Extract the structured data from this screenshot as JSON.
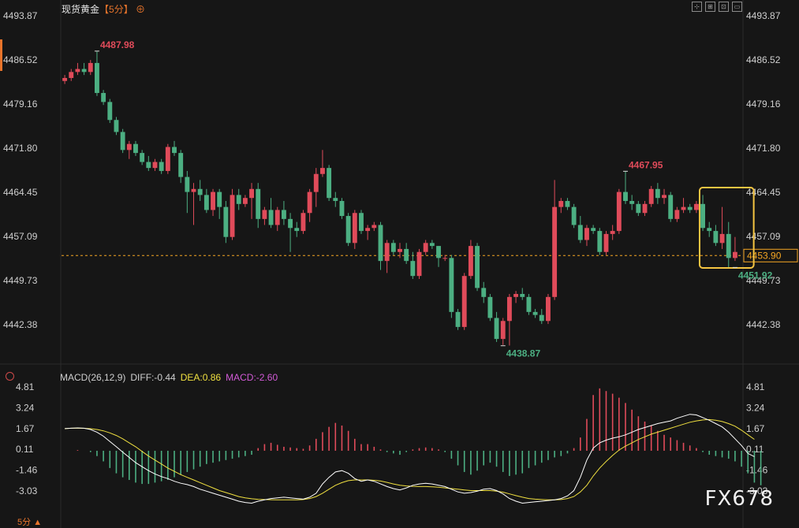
{
  "header": {
    "instrument": "现货黄金",
    "timeframe": "【5分】",
    "add_symbol": "⊕"
  },
  "colors": {
    "up": "#e04b5a",
    "down": "#4caf82",
    "diff": "#ffffff",
    "dea": "#f0e040",
    "macd_label": "#d35bd8",
    "price_line": "#f5a623",
    "highlight": "#f5c542"
  },
  "chart_data": [
    {
      "type": "candlestick",
      "price_ticks": [
        "4493.87",
        "4486.52",
        "4479.16",
        "4471.80",
        "4464.45",
        "4457.09",
        "4449.73",
        "4442.38"
      ],
      "ylim": [
        4439,
        4494
      ],
      "current_price": 4453.9,
      "current_price_label": "4453.90",
      "annotations": [
        {
          "label": "4487.98",
          "value": 4487.98,
          "kind": "high",
          "index": 5
        },
        {
          "label": "4467.95",
          "value": 4467.95,
          "kind": "high",
          "index": 87
        },
        {
          "label": "4438.87",
          "value": 4438.87,
          "kind": "low",
          "index": 68
        },
        {
          "label": "4451.92",
          "value": 4451.92,
          "kind": "low",
          "index": 104
        }
      ],
      "ohlc": [
        [
          4483,
          4484,
          4482.5,
          4483.5
        ],
        [
          4483.5,
          4485,
          4483,
          4484.5
        ],
        [
          4484.5,
          4486,
          4484,
          4485
        ],
        [
          4485,
          4486,
          4484,
          4484.5
        ],
        [
          4484.5,
          4486.5,
          4484,
          4486
        ],
        [
          4486,
          4488,
          4480.5,
          4481
        ],
        [
          4481,
          4481.5,
          4479,
          4479.5
        ],
        [
          4479.5,
          4480,
          4476,
          4476.5
        ],
        [
          4476.5,
          4477,
          4474,
          4474.5
        ],
        [
          4474.5,
          4475,
          4471,
          4471.5
        ],
        [
          4471.5,
          4473,
          4470,
          4472.5
        ],
        [
          4472.5,
          4473,
          4470.5,
          4471
        ],
        [
          4471,
          4471.5,
          4469,
          4469.5
        ],
        [
          4469.5,
          4470.5,
          4468,
          4468.5
        ],
        [
          4468.5,
          4470,
          4468,
          4469.5
        ],
        [
          4469.5,
          4470,
          4467.5,
          4468
        ],
        [
          4468,
          4472.5,
          4467.5,
          4472
        ],
        [
          4472,
          4473,
          4470.5,
          4471
        ],
        [
          4471,
          4471.5,
          4466,
          4467
        ],
        [
          4467,
          4468,
          4461,
          4464.5
        ],
        [
          4464.5,
          4466,
          4459,
          4465
        ],
        [
          4465,
          4466.5,
          4463,
          4464
        ],
        [
          4464,
          4465,
          4461,
          4461.5
        ],
        [
          4461.5,
          4465,
          4460.5,
          4464.5
        ],
        [
          4464.5,
          4465,
          4460,
          4462
        ],
        [
          4462,
          4463,
          4456,
          4457
        ],
        [
          4457,
          4465,
          4456.5,
          4464
        ],
        [
          4464,
          4465,
          4461.5,
          4462.5
        ],
        [
          4462.5,
          4464,
          4462,
          4463.5
        ],
        [
          4463.5,
          4466,
          4460,
          4465
        ],
        [
          4465,
          4466,
          4458.5,
          4460
        ],
        [
          4460,
          4462,
          4459,
          4461.5
        ],
        [
          4461.5,
          4463.5,
          4458.5,
          4459
        ],
        [
          4459,
          4462,
          4458,
          4461.5
        ],
        [
          4461.5,
          4463,
          4459,
          4460
        ],
        [
          4460,
          4461,
          4454.5,
          4458.5
        ],
        [
          4458.5,
          4459.5,
          4457,
          4458
        ],
        [
          4458,
          4461.5,
          4457.5,
          4461
        ],
        [
          4461,
          4465,
          4459.5,
          4464.5
        ],
        [
          4464.5,
          4468.5,
          4462,
          4467.5
        ],
        [
          4467.5,
          4471.5,
          4467,
          4468.5
        ],
        [
          4468.5,
          4469,
          4463,
          4463.5
        ],
        [
          4463.5,
          4464.5,
          4462,
          4463
        ],
        [
          4463,
          4463.5,
          4460,
          4460.5
        ],
        [
          4460.5,
          4461,
          4455.5,
          4456
        ],
        [
          4456,
          4461.5,
          4455,
          4461
        ],
        [
          4461,
          4461.5,
          4457.5,
          4458
        ],
        [
          4458,
          4459,
          4456.5,
          4458.5
        ],
        [
          4458.5,
          4459.5,
          4458,
          4459
        ],
        [
          4459,
          4459.5,
          4451.5,
          4453
        ],
        [
          4453,
          4456.5,
          4451,
          4456
        ],
        [
          4456,
          4456.5,
          4454,
          4454.5
        ],
        [
          4454.5,
          4456,
          4453.5,
          4455
        ],
        [
          4455,
          4456,
          4452.5,
          4453
        ],
        [
          4453,
          4454.5,
          4450,
          4450.5
        ],
        [
          4450.5,
          4455,
          4450,
          4454.5
        ],
        [
          4454.5,
          4456.5,
          4454,
          4456
        ],
        [
          4456,
          4456.5,
          4455,
          4455.5
        ],
        [
          4455.5,
          4455.5,
          4452,
          4453.5
        ],
        [
          4453.5,
          4454,
          4453,
          4453.5
        ],
        [
          4453.5,
          4454,
          4443.5,
          4444.5
        ],
        [
          4444.5,
          4445,
          4441.5,
          4442
        ],
        [
          4442,
          4451,
          4441.5,
          4450.5
        ],
        [
          4450.5,
          4456.5,
          4450,
          4455.5
        ],
        [
          4455.5,
          4456,
          4448,
          4448.5
        ],
        [
          4448.5,
          4449.5,
          4446,
          4447
        ],
        [
          4447,
          4447.5,
          4443,
          4443.5
        ],
        [
          4443.5,
          4444.5,
          4439.5,
          4440
        ],
        [
          4440,
          4443.5,
          4439,
          4443
        ],
        [
          4443,
          4447.5,
          4438.9,
          4447
        ],
        [
          4447,
          4448,
          4446,
          4447.5
        ],
        [
          4447.5,
          4448.5,
          4446.5,
          4447
        ],
        [
          4447,
          4447.5,
          4444,
          4444.5
        ],
        [
          4444.5,
          4445,
          4443.5,
          4444
        ],
        [
          4444,
          4445,
          4442.5,
          4443
        ],
        [
          4443,
          4447.5,
          4442.5,
          4447
        ],
        [
          4447,
          4466.5,
          4446.5,
          4462
        ],
        [
          4462,
          4463.5,
          4461,
          4463
        ],
        [
          4463,
          4463.5,
          4461.5,
          4462
        ],
        [
          4462,
          4462.5,
          4458.5,
          4459
        ],
        [
          4459,
          4460.5,
          4456,
          4456.5
        ],
        [
          4456.5,
          4459,
          4455.5,
          4458.5
        ],
        [
          4458.5,
          4459,
          4457.5,
          4458
        ],
        [
          4458,
          4458.5,
          4454,
          4454.5
        ],
        [
          4454.5,
          4458,
          4454,
          4457.5
        ],
        [
          4457.5,
          4459,
          4456.5,
          4458
        ],
        [
          4458,
          4465,
          4457.5,
          4464.5
        ],
        [
          4464.5,
          4467.95,
          4462.5,
          4463
        ],
        [
          4463,
          4464,
          4461.5,
          4462.5
        ],
        [
          4462.5,
          4463,
          4460.5,
          4461
        ],
        [
          4461,
          4463,
          4460.5,
          4462.5
        ],
        [
          4462.5,
          4465.5,
          4462,
          4465
        ],
        [
          4465,
          4466,
          4462.5,
          4463.5
        ],
        [
          4463.5,
          4465,
          4462.5,
          4464
        ],
        [
          4464,
          4464.5,
          4459.5,
          4460
        ],
        [
          4460,
          4462,
          4459.5,
          4461.5
        ],
        [
          4461.5,
          4463.5,
          4461,
          4462
        ],
        [
          4462,
          4462.5,
          4461,
          4461.5
        ],
        [
          4461.5,
          4463,
          4461,
          4462.5
        ],
        [
          4462.5,
          4464,
          4458,
          4458.5
        ],
        [
          4458.5,
          4459.5,
          4457,
          4458
        ],
        [
          4458,
          4459,
          4455.5,
          4456
        ],
        [
          4456,
          4462,
          4455,
          4457.5
        ],
        [
          4457.5,
          4459.5,
          4451.92,
          4453.5
        ],
        [
          4453.5,
          4457,
          4453,
          4454.5
        ]
      ],
      "highlight_box": {
        "from_index": 99,
        "to_index": 106
      }
    },
    {
      "type": "macd",
      "label": "MACD(26,12,9)",
      "diff_label": "DIFF:-0.44",
      "dea_label": "DEA:0.86",
      "macd_label": "MACD:-2.60",
      "ticks": [
        "4.81",
        "3.24",
        "1.67",
        "0.11",
        "-1.46",
        "-3.03"
      ],
      "ylim": [
        -4.3,
        5.1
      ],
      "diff": [
        1.67,
        1.7,
        1.72,
        1.7,
        1.6,
        1.4,
        1.1,
        0.7,
        0.3,
        -0.1,
        -0.5,
        -0.9,
        -1.2,
        -1.5,
        -1.75,
        -1.95,
        -2.1,
        -2.3,
        -2.45,
        -2.55,
        -2.7,
        -2.9,
        -3.05,
        -3.2,
        -3.35,
        -3.5,
        -3.65,
        -3.8,
        -3.9,
        -3.95,
        -3.8,
        -3.7,
        -3.6,
        -3.55,
        -3.5,
        -3.55,
        -3.6,
        -3.65,
        -3.5,
        -3.2,
        -2.5,
        -2.0,
        -1.6,
        -1.5,
        -1.7,
        -2.1,
        -2.3,
        -2.2,
        -2.3,
        -2.5,
        -2.7,
        -2.85,
        -2.95,
        -2.8,
        -2.6,
        -2.5,
        -2.45,
        -2.5,
        -2.6,
        -2.7,
        -2.9,
        -3.1,
        -3.2,
        -3.15,
        -3.05,
        -2.9,
        -2.85,
        -3.0,
        -3.25,
        -3.6,
        -3.8,
        -3.95,
        -3.9,
        -3.85,
        -3.8,
        -3.75,
        -3.7,
        -3.6,
        -3.4,
        -3.0,
        -2.0,
        -0.7,
        0.2,
        0.6,
        0.8,
        0.95,
        1.05,
        1.2,
        1.4,
        1.6,
        1.75,
        1.9,
        2.05,
        2.15,
        2.25,
        2.45,
        2.6,
        2.75,
        2.7,
        2.5,
        2.3,
        2.05,
        1.8,
        1.4,
        0.9,
        0.4,
        -0.2,
        -0.44
      ],
      "dea": [
        1.67,
        1.7,
        1.7,
        1.69,
        1.66,
        1.6,
        1.5,
        1.35,
        1.15,
        0.9,
        0.6,
        0.3,
        -0.05,
        -0.4,
        -0.7,
        -1.0,
        -1.3,
        -1.55,
        -1.8,
        -2.0,
        -2.2,
        -2.4,
        -2.6,
        -2.8,
        -3.0,
        -3.15,
        -3.3,
        -3.45,
        -3.55,
        -3.62,
        -3.66,
        -3.68,
        -3.69,
        -3.7,
        -3.7,
        -3.7,
        -3.7,
        -3.68,
        -3.6,
        -3.45,
        -3.2,
        -2.9,
        -2.6,
        -2.4,
        -2.25,
        -2.2,
        -2.2,
        -2.2,
        -2.22,
        -2.28,
        -2.38,
        -2.5,
        -2.6,
        -2.65,
        -2.68,
        -2.7,
        -2.7,
        -2.72,
        -2.75,
        -2.8,
        -2.85,
        -2.9,
        -2.95,
        -3.0,
        -3.0,
        -3.0,
        -3.0,
        -3.05,
        -3.12,
        -3.25,
        -3.38,
        -3.5,
        -3.6,
        -3.65,
        -3.68,
        -3.7,
        -3.7,
        -3.68,
        -3.6,
        -3.45,
        -3.1,
        -2.6,
        -1.9,
        -1.3,
        -0.8,
        -0.35,
        0.05,
        0.35,
        0.6,
        0.85,
        1.05,
        1.25,
        1.4,
        1.55,
        1.7,
        1.85,
        2.0,
        2.15,
        2.25,
        2.32,
        2.35,
        2.3,
        2.2,
        2.05,
        1.85,
        1.55,
        1.2,
        0.86
      ],
      "hist": [
        0.0,
        0.0,
        0.05,
        0.0,
        -0.1,
        -0.4,
        -0.8,
        -1.3,
        -1.7,
        -2.0,
        -2.2,
        -2.4,
        -2.5,
        -2.5,
        -2.4,
        -2.3,
        -2.2,
        -2.0,
        -1.8,
        -1.6,
        -1.4,
        -1.2,
        -1.0,
        -0.9,
        -0.8,
        -0.7,
        -0.6,
        -0.5,
        -0.4,
        -0.3,
        0.2,
        0.5,
        0.6,
        0.45,
        0.3,
        0.25,
        0.2,
        0.15,
        0.4,
        0.9,
        1.4,
        1.8,
        2.1,
        1.9,
        1.5,
        0.9,
        0.5,
        0.5,
        0.3,
        0.1,
        -0.1,
        -0.2,
        -0.3,
        -0.1,
        0.1,
        0.2,
        0.25,
        0.2,
        0.1,
        -0.1,
        -0.6,
        -1.1,
        -1.6,
        -1.8,
        -1.5,
        -1.1,
        -0.9,
        -1.2,
        -1.6,
        -1.9,
        -1.8,
        -1.7,
        -1.3,
        -1.1,
        -0.9,
        -0.7,
        -0.5,
        -0.4,
        -0.2,
        0.2,
        1.0,
        2.4,
        4.2,
        4.7,
        4.5,
        4.3,
        4.0,
        3.6,
        3.1,
        2.6,
        2.2,
        1.9,
        1.5,
        1.2,
        1.0,
        0.8,
        0.6,
        0.4,
        0.2,
        -0.1,
        -0.3,
        -0.4,
        -0.5,
        -0.6,
        -0.8,
        -1.2,
        -1.7,
        -2.4,
        -2.6
      ]
    }
  ],
  "footer": {
    "timeframe": "5分",
    "arrow": "▲"
  },
  "watermark": "FX678"
}
